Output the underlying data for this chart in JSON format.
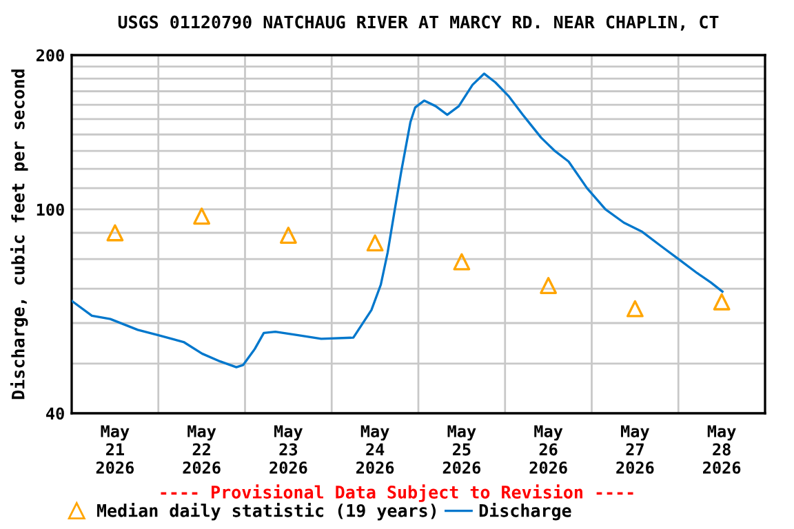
{
  "chart_data": {
    "type": "line",
    "title": "USGS 01120790 NATCHAUG RIVER AT MARCY RD. NEAR CHAPLIN, CT",
    "ylabel": "Discharge, cubic feet per second",
    "annotations": [
      "---- Provisional Data Subject to Revision ----"
    ],
    "log": "y",
    "grid": true,
    "legend": "bottom",
    "xlim": [
      "2026-05-21T00:00",
      "2026-05-29T00:00"
    ],
    "xticks": [
      {
        "value": "2026-05-21T12:00",
        "label": "May\n21\n2026"
      },
      {
        "value": "2026-05-22T12:00",
        "label": "May\n22\n2026"
      },
      {
        "value": "2026-05-23T12:00",
        "label": "May\n23\n2026"
      },
      {
        "value": "2026-05-24T12:00",
        "label": "May\n24\n2026"
      },
      {
        "value": "2026-05-25T12:00",
        "label": "May\n25\n2026"
      },
      {
        "value": "2026-05-26T12:00",
        "label": "May\n26\n2026"
      },
      {
        "value": "2026-05-27T12:00",
        "label": "May\n27\n2026"
      },
      {
        "value": "2026-05-28T12:00",
        "label": "May\n28\n2026"
      },
      {
        "value": "2026-05-22T00:00",
        "label": null
      },
      {
        "value": "2026-05-23T00:00",
        "label": null
      },
      {
        "value": "2026-05-24T00:00",
        "label": null
      },
      {
        "value": "2026-05-25T00:00",
        "label": null
      },
      {
        "value": "2026-05-26T00:00",
        "label": null
      },
      {
        "value": "2026-05-27T00:00",
        "label": null
      },
      {
        "value": "2026-05-28T00:00",
        "label": null
      }
    ],
    "ylim": [
      40,
      200
    ],
    "yticks": [
      40,
      100,
      200,
      {
        "value": 50,
        "label": null
      },
      {
        "value": 60,
        "label": null
      },
      {
        "value": 70,
        "label": null
      },
      {
        "value": 80,
        "label": null
      },
      {
        "value": 90,
        "label": null
      },
      {
        "value": 110,
        "label": null
      },
      {
        "value": 120,
        "label": null
      },
      {
        "value": 130,
        "label": null
      },
      {
        "value": 140,
        "label": null
      },
      {
        "value": 150,
        "label": null
      },
      {
        "value": 160,
        "label": null
      },
      {
        "value": 170,
        "label": null
      },
      {
        "value": 180,
        "label": null
      },
      {
        "value": 190,
        "label": null
      }
    ],
    "series": [
      {
        "name": "Median daily statistic (19 years)",
        "type": "scatter",
        "marker": "triangle",
        "color": "#ffa500",
        "x": [
          "2026-05-21T12:00",
          "2026-05-22T12:00",
          "2026-05-23T12:00",
          "2026-05-24T12:00",
          "2026-05-25T12:00",
          "2026-05-26T12:00",
          "2026-05-27T12:00",
          "2026-05-28T12:00"
        ],
        "values": [
          90,
          97,
          89,
          86,
          79,
          71,
          64,
          66
        ]
      },
      {
        "name": "Discharge",
        "color": "#0077cc",
        "x": [
          "2026-05-21T00:00",
          "2026-05-21T05:36",
          "2026-05-21T10:42",
          "2026-05-21T18:18",
          "2026-05-22T00:00",
          "2026-05-22T07:00",
          "2026-05-22T12:06",
          "2026-05-22T17:06",
          "2026-05-22T21:36",
          "2026-05-22T23:30",
          "2026-05-23T02:42",
          "2026-05-23T05:12",
          "2026-05-23T08:24",
          "2026-05-23T14:42",
          "2026-05-23T21:06",
          "2026-05-24T06:00",
          "2026-05-24T08:30",
          "2026-05-24T11:00",
          "2026-05-24T13:36",
          "2026-05-24T15:30",
          "2026-05-24T17:24",
          "2026-05-24T19:18",
          "2026-05-24T21:48",
          "2026-05-24T23:06",
          "2026-05-25T01:36",
          "2026-05-25T04:48",
          "2026-05-25T08:00",
          "2026-05-25T11:12",
          "2026-05-25T15:00",
          "2026-05-25T18:12",
          "2026-05-25T21:18",
          "2026-05-26T01:06",
          "2026-05-26T04:54",
          "2026-05-26T10:00",
          "2026-05-26T13:48",
          "2026-05-26T17:36",
          "2026-05-26T22:42",
          "2026-05-27T03:48",
          "2026-05-27T08:54",
          "2026-05-27T14:00",
          "2026-05-27T19:00",
          "2026-05-28T00:06",
          "2026-05-28T05:12",
          "2026-05-28T09:00",
          "2026-05-28T12:12"
        ],
        "values": [
          66.3,
          62.0,
          61.1,
          58.2,
          56.8,
          55.1,
          52.3,
          50.5,
          49.2,
          49.7,
          53.4,
          57.4,
          57.7,
          56.8,
          55.9,
          56.2,
          59.8,
          63.6,
          71.3,
          82.4,
          99.2,
          119,
          148,
          158,
          163,
          159,
          153,
          159,
          175,
          184,
          177,
          166,
          153,
          138,
          130,
          124,
          110,
          100,
          94.2,
          90.4,
          85.0,
          79.9,
          75.1,
          72.0,
          69.1
        ]
      }
    ]
  }
}
